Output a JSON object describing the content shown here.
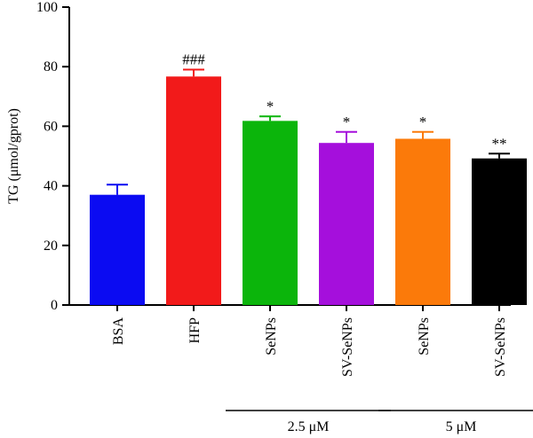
{
  "chart_data": {
    "type": "bar",
    "categories": [
      "BSA",
      "HFP",
      "SeNPs",
      "SV-SeNPs",
      "SeNPs",
      "SV-SeNPs"
    ],
    "values": [
      37,
      76.7,
      61.8,
      54.4,
      55.8,
      49.2
    ],
    "errors": [
      3.4,
      2.3,
      1.5,
      3.7,
      2.3,
      1.6
    ],
    "colors": [
      "#0b0bf2",
      "#f21a1a",
      "#0bb50b",
      "#a50fdc",
      "#fb7a0a",
      "#000000"
    ],
    "annotations": [
      "",
      "###",
      "*",
      "*",
      "*",
      "**"
    ],
    "ylabel": "TG (μmol/gprot)",
    "ylim": [
      0,
      100
    ],
    "yticks": [
      0,
      20,
      40,
      60,
      80,
      100
    ],
    "groups": [
      {
        "label": "2.5 μM",
        "categories": [
          2,
          3
        ]
      },
      {
        "label": "5 μM",
        "categories": [
          4,
          5
        ]
      }
    ],
    "grid": false
  }
}
